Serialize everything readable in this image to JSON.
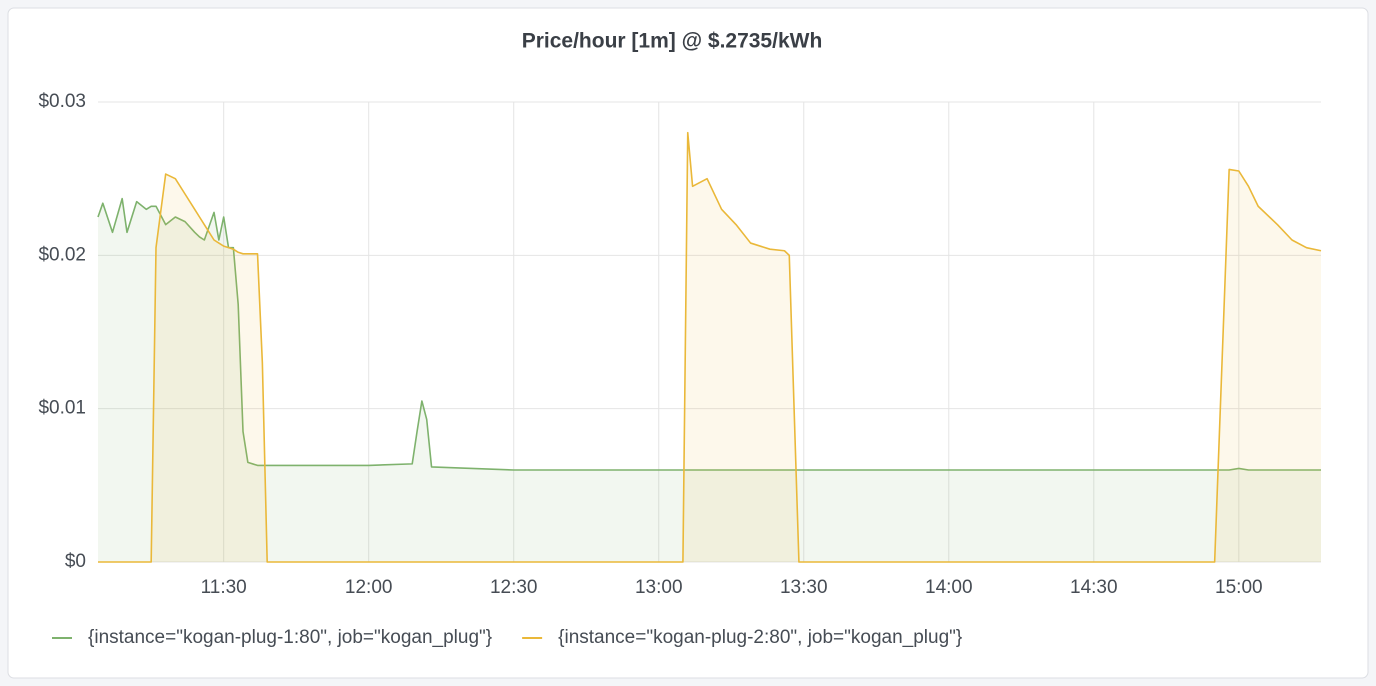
{
  "chart_data": {
    "type": "line",
    "title": "Price/hour [1m] @ $.2735/kWh",
    "x": [
      "11:04",
      "11:05",
      "11:07",
      "11:09",
      "11:10",
      "11:12",
      "11:14",
      "11:15",
      "11:16",
      "11:18",
      "11:20",
      "11:22",
      "11:24",
      "11:25",
      "11:26",
      "11:28",
      "11:29",
      "11:30",
      "11:31",
      "11:32",
      "11:33",
      "11:34",
      "11:35",
      "11:37",
      "11:38",
      "11:39",
      "12:00",
      "12:09",
      "12:10",
      "12:11",
      "12:12",
      "12:13",
      "12:30",
      "13:00",
      "13:05",
      "13:06",
      "13:07",
      "13:10",
      "13:13",
      "13:16",
      "13:19",
      "13:23",
      "13:26",
      "13:27",
      "13:29",
      "14:00",
      "14:30",
      "14:55",
      "14:58",
      "15:00",
      "15:02",
      "15:04",
      "15:08",
      "15:11",
      "15:14",
      "15:17"
    ],
    "series": [
      {
        "name": "{instance=\"kogan-plug-1:80\", job=\"kogan_plug\"}",
        "color": "#7eb26d",
        "values": [
          0.0225,
          0.0234,
          0.0215,
          0.0237,
          0.0215,
          0.0235,
          0.023,
          0.0232,
          0.0232,
          0.022,
          0.0225,
          0.0222,
          0.0215,
          0.0212,
          0.021,
          0.0228,
          0.021,
          0.0225,
          0.0205,
          0.0205,
          0.0168,
          0.0085,
          0.0065,
          0.0063,
          0.0063,
          0.0063,
          0.0063,
          0.0064,
          0.0085,
          0.0105,
          0.0093,
          0.0062,
          0.006,
          0.006,
          0.006,
          0.006,
          0.006,
          0.006,
          0.006,
          0.006,
          0.006,
          0.006,
          0.006,
          0.006,
          0.006,
          0.006,
          0.006,
          0.006,
          0.006,
          0.0061,
          0.006,
          0.006,
          0.006,
          0.006,
          0.006,
          0.006
        ]
      },
      {
        "name": "{instance=\"kogan-plug-2:80\", job=\"kogan_plug\"}",
        "color": "#eab839",
        "values": [
          0,
          0,
          0,
          0,
          0,
          0,
          0,
          0,
          0.0205,
          0.0253,
          0.025,
          0.024,
          0.023,
          0.0225,
          0.022,
          0.021,
          0.0208,
          0.0206,
          0.0205,
          0.0204,
          0.0202,
          0.0201,
          0.0201,
          0.0201,
          0.013,
          0,
          0,
          0,
          0,
          0,
          0,
          0,
          0,
          0,
          0,
          0.028,
          0.0245,
          0.025,
          0.023,
          0.022,
          0.0208,
          0.0204,
          0.0203,
          0.02,
          0,
          0,
          0,
          0,
          0.0256,
          0.0255,
          0.0245,
          0.0232,
          0.022,
          0.021,
          0.0205,
          0.0203
        ]
      }
    ],
    "xlim": [
      "11:04",
      "15:17"
    ],
    "xticks": [
      "11:30",
      "12:00",
      "12:30",
      "13:00",
      "13:30",
      "14:00",
      "14:30",
      "15:00"
    ],
    "ylim": [
      0,
      0.03
    ],
    "yticks": [
      {
        "value": 0,
        "label": "$0"
      },
      {
        "value": 0.01,
        "label": "$0.01"
      },
      {
        "value": 0.02,
        "label": "$0.02"
      },
      {
        "value": 0.03,
        "label": "$0.03"
      }
    ],
    "grid": true,
    "legend": "bottom-left",
    "fill_opacity": 0.1
  }
}
